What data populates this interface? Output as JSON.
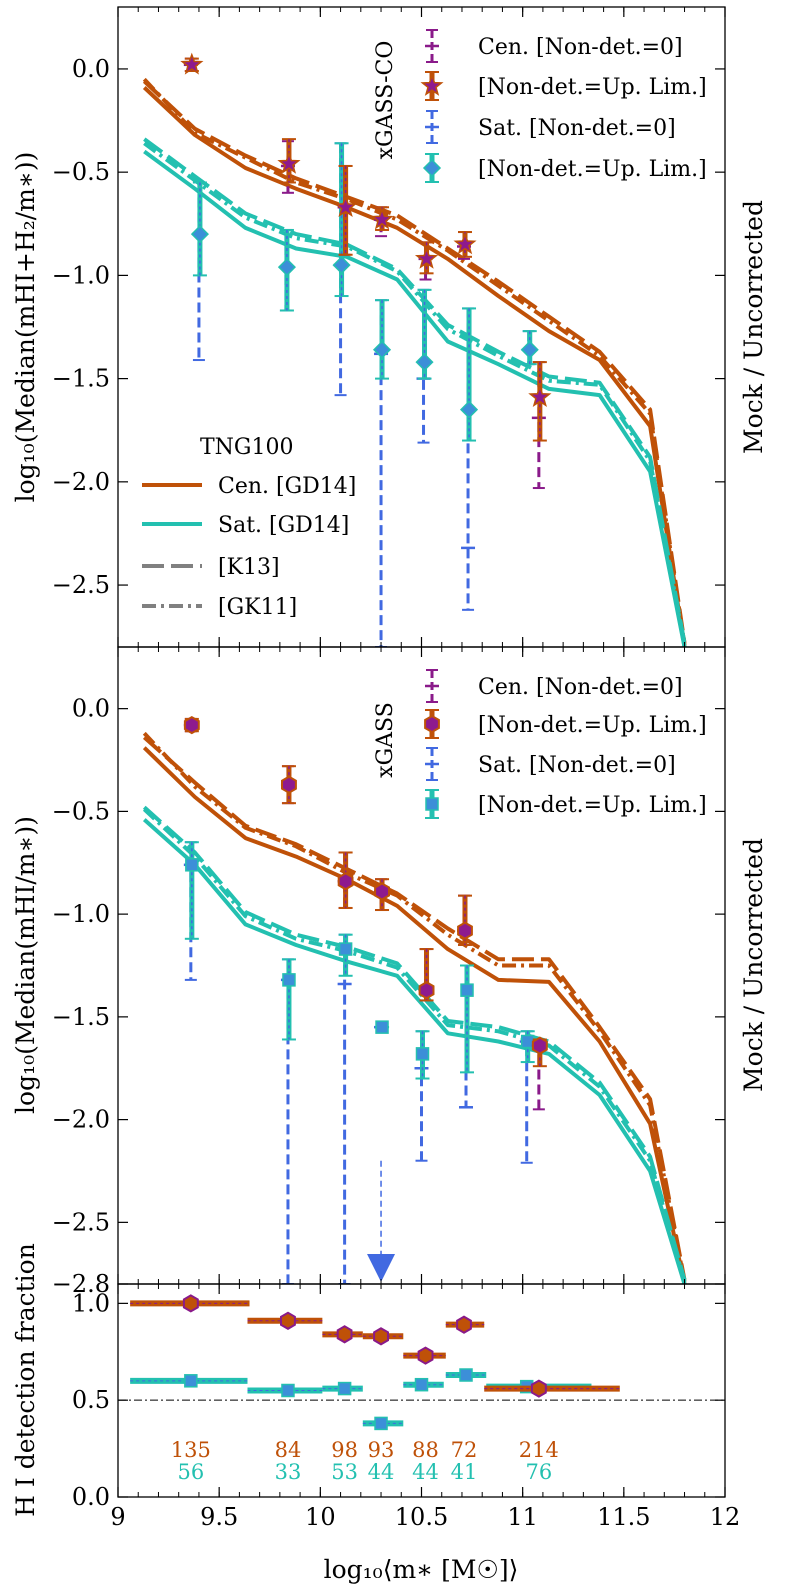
{
  "figure": {
    "xlabel": "log₁₀⟨m∗ [M☉]⟩",
    "x_ticks": [
      "9",
      "9.5",
      "10",
      "10.5",
      "11",
      "11.5",
      "12"
    ],
    "colors": {
      "cen": "#bf5108",
      "sat": "#23c0b0",
      "obs_cen": "#8a1a8a",
      "obs_sat": "#4169e1",
      "marker_fill_cen": "#8e1a8e",
      "marker_fill_sat": "#3c8fd8",
      "grey": "#808080"
    }
  },
  "chart_data": [
    {
      "id": "top",
      "type": "line",
      "ylabel": "log₁₀(Median(mHI+H₂/m∗))",
      "ylabel_right": "Mock / Uncorrected",
      "xlim": [
        9,
        12
      ],
      "ylim": [
        -2.8,
        0.3
      ],
      "y_ticks": [
        "0.0",
        "−0.5",
        "−1.0",
        "−1.5",
        "−2.0",
        "−2.5"
      ],
      "y_tick_values": [
        0,
        -0.5,
        -1,
        -1.5,
        -2,
        -2.5
      ],
      "legend_obs_title": "xGASS-CO",
      "legend_obs": [
        {
          "label": "Cen. [Non-det.=0]"
        },
        {
          "label": "[Non-det.=Up. Lim.]"
        },
        {
          "label": "Sat. [Non-det.=0]"
        },
        {
          "label": "[Non-det.=Up. Lim.]"
        }
      ],
      "legend_sim_title": "TNG100",
      "legend_sim": [
        {
          "label": "Cen. [GD14]"
        },
        {
          "label": "Sat. [GD14]"
        },
        {
          "label": "[K13]"
        },
        {
          "label": "[GK11]"
        }
      ],
      "series": [
        {
          "name": "Cen. [GD14]",
          "style": "solid",
          "color": "cen",
          "x": [
            9.13,
            9.38,
            9.63,
            9.88,
            10.13,
            10.38,
            10.63,
            10.88,
            11.13,
            11.38,
            11.63,
            11.8
          ],
          "y": [
            -0.09,
            -0.32,
            -0.48,
            -0.58,
            -0.67,
            -0.77,
            -0.92,
            -1.1,
            -1.27,
            -1.41,
            -1.73,
            -2.8
          ]
        },
        {
          "name": "Cen. [K13]",
          "style": "dashed",
          "color": "cen",
          "x": [
            9.13,
            9.38,
            9.63,
            9.88,
            10.13,
            10.38,
            10.63,
            10.88,
            11.13,
            11.38,
            11.63,
            11.8
          ],
          "y": [
            -0.06,
            -0.29,
            -0.42,
            -0.53,
            -0.62,
            -0.71,
            -0.87,
            -1.03,
            -1.2,
            -1.37,
            -1.65,
            -2.78
          ]
        },
        {
          "name": "Cen. [GK11]",
          "style": "dashdot",
          "color": "cen",
          "x": [
            9.13,
            9.38,
            9.63,
            9.88,
            10.13,
            10.38,
            10.63,
            10.88,
            11.13,
            11.38,
            11.63,
            11.8
          ],
          "y": [
            -0.05,
            -0.31,
            -0.43,
            -0.55,
            -0.63,
            -0.73,
            -0.88,
            -1.05,
            -1.22,
            -1.39,
            -1.67,
            -2.79
          ]
        },
        {
          "name": "Sat. [GD14]",
          "style": "solid",
          "color": "sat",
          "x": [
            9.13,
            9.38,
            9.63,
            9.88,
            10.13,
            10.38,
            10.63,
            10.88,
            11.13,
            11.38,
            11.63,
            11.8
          ],
          "y": [
            -0.4,
            -0.58,
            -0.77,
            -0.87,
            -0.91,
            -1.02,
            -1.32,
            -1.43,
            -1.55,
            -1.58,
            -1.95,
            -2.8
          ]
        },
        {
          "name": "Sat. [K13]",
          "style": "dashed",
          "color": "sat",
          "x": [
            9.13,
            9.38,
            9.63,
            9.88,
            10.13,
            10.38,
            10.63,
            10.88,
            11.13,
            11.38,
            11.63,
            11.8
          ],
          "y": [
            -0.34,
            -0.52,
            -0.7,
            -0.8,
            -0.85,
            -0.97,
            -1.24,
            -1.37,
            -1.49,
            -1.52,
            -1.88,
            -2.78
          ]
        },
        {
          "name": "Sat. [GK11]",
          "style": "dashdot",
          "color": "sat",
          "x": [
            9.13,
            9.38,
            9.63,
            9.88,
            10.13,
            10.38,
            10.63,
            10.88,
            11.13,
            11.38,
            11.63,
            11.8
          ],
          "y": [
            -0.36,
            -0.54,
            -0.72,
            -0.82,
            -0.86,
            -0.98,
            -1.26,
            -1.39,
            -1.51,
            -1.53,
            -1.9,
            -2.79
          ]
        }
      ],
      "obs_cen_zero": {
        "x": [
          9.36,
          9.84,
          10.12,
          10.3,
          10.52,
          10.71,
          11.08
        ],
        "y": [
          0.02,
          -0.47,
          -0.67,
          -0.73,
          -0.92,
          -0.86,
          -1.69
        ],
        "lo": [
          -0.01,
          -0.6,
          -0.9,
          -0.81,
          -1.02,
          -0.92,
          -2.03
        ],
        "hi": [
          0.05,
          -0.35,
          -0.47,
          -0.67,
          -0.84,
          -0.79,
          -1.42
        ]
      },
      "obs_cen_up": {
        "x": [
          9.36,
          9.84,
          10.12,
          10.3,
          10.52,
          10.71,
          11.08
        ],
        "y": [
          0.02,
          -0.46,
          -0.67,
          -0.73,
          -0.92,
          -0.85,
          -1.59
        ],
        "lo": [
          -0.01,
          -0.55,
          -0.9,
          -0.78,
          -0.99,
          -0.91,
          -1.8
        ],
        "hi": [
          0.05,
          -0.34,
          -0.47,
          -0.67,
          -0.84,
          -0.79,
          -1.42
        ]
      },
      "obs_cen_marker": "star",
      "obs_sat_zero": {
        "x": [
          9.4,
          9.83,
          10.1,
          10.3,
          10.51,
          10.73,
          11.03
        ],
        "y": [
          -0.8,
          -0.96,
          -0.95,
          -1.38,
          -1.5,
          -2.32,
          -1.36
        ],
        "lo": [
          -1.41,
          -1.17,
          -1.58,
          -2.8,
          -1.81,
          -2.62,
          -1.43
        ],
        "hi": [
          -0.55,
          -0.78,
          -0.36,
          -1.12,
          -1.07,
          -1.16,
          -1.27
        ]
      },
      "obs_sat_up": {
        "x": [
          9.4,
          9.83,
          10.1,
          10.3,
          10.51,
          10.73,
          11.03
        ],
        "y": [
          -0.8,
          -0.96,
          -0.95,
          -1.36,
          -1.42,
          -1.65,
          -1.36
        ],
        "lo": [
          -1.0,
          -1.17,
          -1.1,
          -1.5,
          -1.5,
          -1.8,
          -1.43
        ],
        "hi": [
          -0.55,
          -0.78,
          -0.36,
          -1.12,
          -1.07,
          -1.16,
          -1.27
        ]
      },
      "obs_sat_marker": "diamond",
      "arrow": null
    },
    {
      "id": "mid",
      "type": "line",
      "ylabel": "log₁₀(Median(mHI/m∗))",
      "ylabel_right": "Mock / Uncorrected",
      "xlim": [
        9,
        12
      ],
      "ylim": [
        -2.8,
        0.3
      ],
      "y_ticks": [
        "0.0",
        "−0.5",
        "−1.0",
        "−1.5",
        "−2.0",
        "−2.5",
        "−2.8"
      ],
      "y_tick_values": [
        0,
        -0.5,
        -1,
        -1.5,
        -2,
        -2.5,
        -2.8
      ],
      "legend_obs_title": "xGASS",
      "legend_obs": [
        {
          "label": "Cen. [Non-det.=0]"
        },
        {
          "label": "[Non-det.=Up. Lim.]"
        },
        {
          "label": "Sat. [Non-det.=0]"
        },
        {
          "label": "[Non-det.=Up. Lim.]"
        }
      ],
      "legend_sim_title": "",
      "legend_sim": [],
      "series": [
        {
          "name": "Cen. [GD14]",
          "style": "solid",
          "color": "cen",
          "x": [
            9.13,
            9.38,
            9.63,
            9.88,
            10.13,
            10.38,
            10.63,
            10.88,
            11.13,
            11.38,
            11.63,
            11.8
          ],
          "y": [
            -0.19,
            -0.43,
            -0.63,
            -0.72,
            -0.83,
            -0.96,
            -1.17,
            -1.32,
            -1.33,
            -1.62,
            -2.02,
            -2.8
          ]
        },
        {
          "name": "Cen. [K13]",
          "style": "dashed",
          "color": "cen",
          "x": [
            9.13,
            9.38,
            9.63,
            9.88,
            10.13,
            10.38,
            10.63,
            10.88,
            11.13,
            11.38,
            11.63,
            11.8
          ],
          "y": [
            -0.14,
            -0.36,
            -0.57,
            -0.66,
            -0.78,
            -0.9,
            -1.07,
            -1.22,
            -1.22,
            -1.55,
            -1.9,
            -2.78
          ]
        },
        {
          "name": "Cen. [GK11]",
          "style": "dashdot",
          "color": "cen",
          "x": [
            9.13,
            9.38,
            9.63,
            9.88,
            10.13,
            10.38,
            10.63,
            10.88,
            11.13,
            11.38,
            11.63,
            11.8
          ],
          "y": [
            -0.12,
            -0.38,
            -0.58,
            -0.67,
            -0.8,
            -0.91,
            -1.1,
            -1.25,
            -1.25,
            -1.57,
            -1.93,
            -2.79
          ]
        },
        {
          "name": "Sat. [GD14]",
          "style": "solid",
          "color": "sat",
          "x": [
            9.13,
            9.38,
            9.63,
            9.88,
            10.13,
            10.38,
            10.63,
            10.88,
            11.13,
            11.38,
            11.63,
            11.8
          ],
          "y": [
            -0.54,
            -0.76,
            -1.05,
            -1.15,
            -1.23,
            -1.3,
            -1.58,
            -1.62,
            -1.68,
            -1.88,
            -2.25,
            -2.8
          ]
        },
        {
          "name": "Sat. [K13]",
          "style": "dashed",
          "color": "sat",
          "x": [
            9.13,
            9.38,
            9.63,
            9.88,
            10.13,
            10.38,
            10.63,
            10.88,
            11.13,
            11.38,
            11.63,
            11.8
          ],
          "y": [
            -0.48,
            -0.7,
            -0.99,
            -1.1,
            -1.16,
            -1.24,
            -1.52,
            -1.55,
            -1.62,
            -1.82,
            -2.18,
            -2.78
          ]
        },
        {
          "name": "Sat. [GK11]",
          "style": "dashdot",
          "color": "sat",
          "x": [
            9.13,
            9.38,
            9.63,
            9.88,
            10.13,
            10.38,
            10.63,
            10.88,
            11.13,
            11.38,
            11.63,
            11.8
          ],
          "y": [
            -0.49,
            -0.72,
            -1.01,
            -1.12,
            -1.18,
            -1.26,
            -1.54,
            -1.57,
            -1.64,
            -1.84,
            -2.2,
            -2.79
          ]
        }
      ],
      "obs_cen_zero": {
        "x": [
          9.36,
          9.84,
          10.12,
          10.3,
          10.52,
          10.71,
          11.08
        ],
        "y": [
          -0.08,
          -0.37,
          -0.84,
          -0.89,
          -1.37,
          -1.08,
          -1.64
        ],
        "lo": [
          -0.11,
          -0.46,
          -0.97,
          -0.98,
          -1.42,
          -1.15,
          -1.95
        ],
        "hi": [
          -0.05,
          -0.28,
          -0.7,
          -0.83,
          -1.17,
          -0.91,
          -1.61
        ]
      },
      "obs_cen_up": {
        "x": [
          9.36,
          9.84,
          10.12,
          10.3,
          10.52,
          10.71,
          11.08
        ],
        "y": [
          -0.08,
          -0.37,
          -0.84,
          -0.89,
          -1.37,
          -1.08,
          -1.64
        ],
        "lo": [
          -0.11,
          -0.46,
          -0.97,
          -0.98,
          -1.42,
          -1.15,
          -1.74
        ],
        "hi": [
          -0.05,
          -0.28,
          -0.7,
          -0.83,
          -1.17,
          -0.91,
          -1.61
        ]
      },
      "obs_cen_marker": "hexagon",
      "obs_sat_zero": {
        "x": [
          9.36,
          9.84,
          10.12,
          10.3,
          10.5,
          10.72,
          11.02
        ],
        "y": [
          -0.76,
          -1.32,
          -1.34,
          -1.55,
          -1.75,
          -1.94,
          -1.62
        ],
        "lo": [
          -1.32,
          -2.8,
          -2.8,
          -1.55,
          -2.2,
          -1.94,
          -2.21
        ],
        "hi": [
          -0.65,
          -1.22,
          -1.1,
          -1.55,
          -1.57,
          -1.25,
          -1.57
        ]
      },
      "obs_sat_up": {
        "x": [
          9.36,
          9.84,
          10.12,
          10.3,
          10.5,
          10.72,
          11.02
        ],
        "y": [
          -0.76,
          -1.32,
          -1.17,
          -1.55,
          -1.68,
          -1.37,
          -1.62
        ],
        "lo": [
          -1.12,
          -1.61,
          -1.3,
          -1.55,
          -1.8,
          -1.77,
          -1.72
        ],
        "hi": [
          -0.65,
          -1.22,
          -1.1,
          -1.55,
          -1.57,
          -1.25,
          -1.57
        ]
      },
      "obs_sat_marker": "square",
      "arrow": {
        "x": 10.3,
        "y_from": -2.2,
        "y_to": -2.8
      }
    },
    {
      "id": "bottom",
      "type": "scatter",
      "ylabel": "H I detection fraction",
      "xlim": [
        9,
        12
      ],
      "ylim": [
        0,
        1.1
      ],
      "y_ticks": [
        "1.0",
        "0.5",
        "0.0"
      ],
      "y_tick_values": [
        1.0,
        0.5,
        0.0
      ],
      "threshold": 0.5,
      "cen": {
        "x": [
          9.36,
          9.84,
          10.12,
          10.3,
          10.52,
          10.71,
          11.08
        ],
        "y": [
          1.0,
          0.91,
          0.84,
          0.83,
          0.73,
          0.89,
          0.56
        ],
        "xlo": [
          9.06,
          9.64,
          10.01,
          10.21,
          10.41,
          10.62,
          10.81
        ],
        "xhi": [
          9.65,
          10.01,
          10.21,
          10.41,
          10.62,
          10.81,
          11.48
        ]
      },
      "sat": {
        "x": [
          9.36,
          9.84,
          10.12,
          10.3,
          10.5,
          10.72,
          11.02
        ],
        "y": [
          0.6,
          0.55,
          0.56,
          0.38,
          0.58,
          0.63,
          0.57
        ],
        "xlo": [
          9.06,
          9.64,
          10.01,
          10.21,
          10.41,
          10.62,
          10.82
        ],
        "xhi": [
          9.64,
          10.01,
          10.21,
          10.41,
          10.61,
          10.82,
          11.34
        ]
      },
      "counts_cen": {
        "x": [
          9.36,
          9.84,
          10.12,
          10.3,
          10.52,
          10.71,
          11.08
        ],
        "labels": [
          "135",
          "84",
          "98",
          "93",
          "88",
          "72",
          "214"
        ]
      },
      "counts_sat": {
        "x": [
          9.36,
          9.84,
          10.12,
          10.3,
          10.52,
          10.71,
          11.08
        ],
        "labels": [
          "56",
          "33",
          "53",
          "44",
          "44",
          "41",
          "76"
        ]
      }
    }
  ]
}
